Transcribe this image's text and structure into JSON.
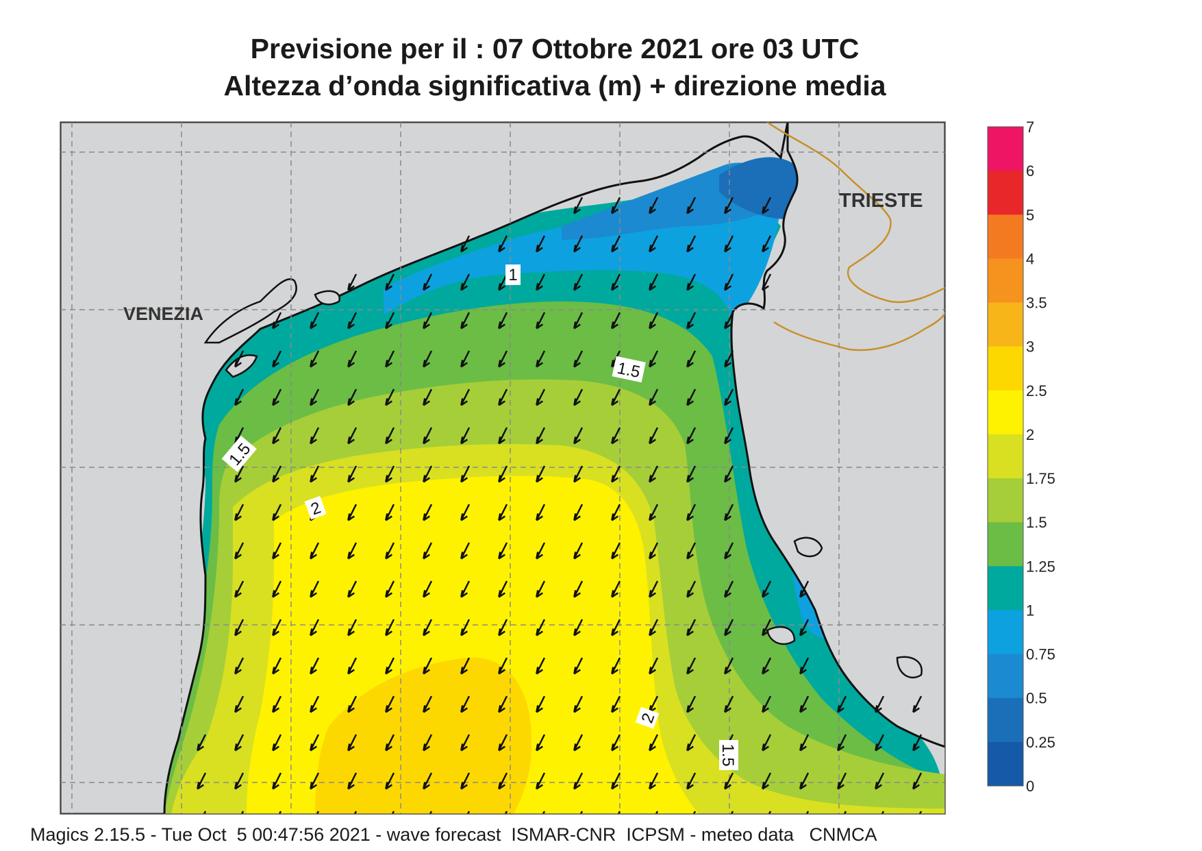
{
  "title": {
    "line1": "Previsione per il  :  07  Ottobre  2021   ore 03 UTC",
    "line2": "Altezza d’onda significativa (m) + direzione media"
  },
  "places": {
    "venezia": "VENEZIA",
    "trieste": "TRIESTE"
  },
  "contour_labels": {
    "c1": "1",
    "c15_north": "1.5",
    "c15_west": "1.5",
    "c2_west": "2",
    "c2_south": "2",
    "c15_south": "1.5"
  },
  "colorbar": {
    "ticks": [
      "7",
      "6",
      "5",
      "4",
      "3.5",
      "3",
      "2.5",
      "2",
      "1.75",
      "1.5",
      "1.25",
      "1",
      "0.75",
      "0.5",
      "0.25",
      "0"
    ],
    "colors": [
      "#ee1565",
      "#e8272b",
      "#f47a22",
      "#f6921e",
      "#f7b51a",
      "#fdd800",
      "#fff200",
      "#d8e021",
      "#a6ce39",
      "#6bbd45",
      "#00a99d",
      "#0ea1e0",
      "#1c8ad0",
      "#1a6fb8",
      "#155aa8"
    ]
  },
  "map_data": {
    "variable": "significant wave height (m) + mean direction",
    "mean_wave_direction": "SW"
  },
  "footer": "Magics 2.15.5 - Tue Oct  5 00:47:56 2021 - wave forecast  ISMAR-CNR  ICPSM - meteo data   CNMCA"
}
